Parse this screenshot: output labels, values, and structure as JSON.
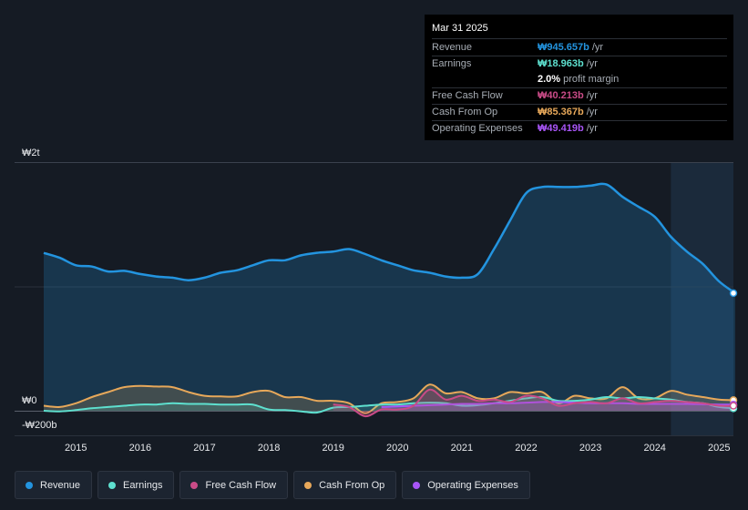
{
  "colors": {
    "background": "#151b24",
    "revenue": "#2394df",
    "earnings": "#5ee0cf",
    "free_cash_flow": "#c94b87",
    "cash_from_op": "#e7a85a",
    "operating_expenses": "#a855f7"
  },
  "tooltip": {
    "date": "Mar 31 2025",
    "rows": [
      {
        "label": "Revenue",
        "value": "₩945.657b",
        "unit": "/yr",
        "color": "#2394df"
      },
      {
        "label": "Earnings",
        "value": "₩18.963b",
        "unit": "/yr",
        "color": "#5ee0cf"
      },
      {
        "label": "",
        "value": "2.0%",
        "unit": "profit margin",
        "color": "#ffffff"
      },
      {
        "label": "Free Cash Flow",
        "value": "₩40.213b",
        "unit": "/yr",
        "color": "#c94b87"
      },
      {
        "label": "Cash From Op",
        "value": "₩85.367b",
        "unit": "/yr",
        "color": "#e7a85a"
      },
      {
        "label": "Operating Expenses",
        "value": "₩49.419b",
        "unit": "/yr",
        "color": "#a855f7"
      }
    ]
  },
  "legend": [
    {
      "label": "Revenue",
      "color": "#2394df"
    },
    {
      "label": "Earnings",
      "color": "#5ee0cf"
    },
    {
      "label": "Free Cash Flow",
      "color": "#c94b87"
    },
    {
      "label": "Cash From Op",
      "color": "#e7a85a"
    },
    {
      "label": "Operating Expenses",
      "color": "#a855f7"
    }
  ],
  "chart_data": {
    "type": "area",
    "title": "",
    "xlabel": "",
    "ylabel": "",
    "y_tick_labels": [
      "₩2t",
      "₩0",
      "-₩200b"
    ],
    "x_tick_labels": [
      "2015",
      "2016",
      "2017",
      "2018",
      "2019",
      "2020",
      "2021",
      "2022",
      "2023",
      "2024",
      "2025"
    ],
    "ylim_billions": [
      -200,
      2000
    ],
    "xlim_years": [
      2014.45,
      2025.25
    ],
    "forecast_start": 2024.25,
    "series": [
      {
        "name": "Revenue",
        "x": [
          2014.5,
          2014.75,
          2015.0,
          2015.25,
          2015.5,
          2015.75,
          2016.0,
          2016.25,
          2016.5,
          2016.75,
          2017.0,
          2017.25,
          2017.5,
          2017.75,
          2018.0,
          2018.25,
          2018.5,
          2018.75,
          2019.0,
          2019.25,
          2019.5,
          2019.75,
          2020.0,
          2020.25,
          2020.5,
          2020.75,
          2021.0,
          2021.25,
          2021.5,
          2021.75,
          2022.0,
          2022.25,
          2022.5,
          2022.75,
          2023.0,
          2023.25,
          2023.5,
          2023.75,
          2024.0,
          2024.25,
          2024.5,
          2024.75,
          2025.0,
          2025.25
        ],
        "values": [
          1270,
          1230,
          1170,
          1160,
          1120,
          1125,
          1100,
          1080,
          1070,
          1050,
          1070,
          1110,
          1130,
          1170,
          1210,
          1210,
          1250,
          1270,
          1280,
          1300,
          1260,
          1210,
          1170,
          1130,
          1110,
          1080,
          1070,
          1100,
          1300,
          1530,
          1750,
          1800,
          1800,
          1800,
          1810,
          1820,
          1720,
          1640,
          1560,
          1400,
          1280,
          1180,
          1040,
          946
        ]
      },
      {
        "name": "Earnings",
        "x": [
          2014.5,
          2014.75,
          2015.0,
          2015.25,
          2015.5,
          2015.75,
          2016.0,
          2016.25,
          2016.5,
          2016.75,
          2017.0,
          2017.25,
          2017.5,
          2017.75,
          2018.0,
          2018.25,
          2018.5,
          2018.75,
          2019.0,
          2019.25,
          2019.5,
          2019.75,
          2020.0,
          2020.25,
          2020.5,
          2020.75,
          2021.0,
          2021.25,
          2021.5,
          2021.75,
          2022.0,
          2022.25,
          2022.5,
          2022.75,
          2023.0,
          2023.25,
          2023.5,
          2023.75,
          2024.0,
          2024.25,
          2024.5,
          2024.75,
          2025.0,
          2025.25
        ],
        "values": [
          0,
          -5,
          5,
          20,
          30,
          40,
          50,
          50,
          60,
          55,
          55,
          50,
          50,
          50,
          10,
          5,
          -5,
          -15,
          25,
          30,
          40,
          50,
          50,
          60,
          65,
          60,
          40,
          45,
          60,
          80,
          100,
          110,
          80,
          80,
          90,
          110,
          100,
          110,
          100,
          90,
          70,
          60,
          30,
          19
        ]
      },
      {
        "name": "Free Cash Flow",
        "x": [
          2019.0,
          2019.25,
          2019.5,
          2019.75,
          2020.0,
          2020.25,
          2020.5,
          2020.75,
          2021.0,
          2021.25,
          2021.5,
          2021.75,
          2022.0,
          2022.25,
          2022.5,
          2022.75,
          2023.0,
          2023.25,
          2023.5,
          2023.75,
          2024.0,
          2024.25,
          2024.5,
          2024.75,
          2025.0,
          2025.25
        ],
        "values": [
          50,
          30,
          -45,
          10,
          10,
          40,
          170,
          90,
          120,
          80,
          90,
          70,
          120,
          100,
          40,
          60,
          70,
          60,
          100,
          60,
          70,
          80,
          70,
          60,
          40,
          40
        ]
      },
      {
        "name": "Cash From Op",
        "x": [
          2014.5,
          2014.75,
          2015.0,
          2015.25,
          2015.5,
          2015.75,
          2016.0,
          2016.25,
          2016.5,
          2016.75,
          2017.0,
          2017.25,
          2017.5,
          2017.75,
          2018.0,
          2018.25,
          2018.5,
          2018.75,
          2019.0,
          2019.25,
          2019.5,
          2019.75,
          2020.0,
          2020.25,
          2020.5,
          2020.75,
          2021.0,
          2021.25,
          2021.5,
          2021.75,
          2022.0,
          2022.25,
          2022.5,
          2022.75,
          2023.0,
          2023.25,
          2023.5,
          2023.75,
          2024.0,
          2024.25,
          2024.5,
          2024.75,
          2025.0,
          2025.25
        ],
        "values": [
          40,
          30,
          60,
          110,
          150,
          190,
          200,
          195,
          190,
          150,
          120,
          115,
          115,
          150,
          160,
          110,
          110,
          80,
          80,
          60,
          -20,
          60,
          70,
          100,
          210,
          140,
          150,
          100,
          100,
          150,
          140,
          150,
          60,
          120,
          100,
          100,
          190,
          100,
          100,
          160,
          130,
          110,
          90,
          85
        ]
      },
      {
        "name": "Operating Expenses",
        "x": [
          2019.75,
          2020.0,
          2020.25,
          2020.5,
          2020.75,
          2021.0,
          2021.25,
          2021.5,
          2021.75,
          2022.0,
          2022.25,
          2022.5,
          2022.75,
          2023.0,
          2023.25,
          2023.5,
          2023.75,
          2024.0,
          2024.25,
          2024.5,
          2024.75,
          2025.0,
          2025.25
        ],
        "values": [
          30,
          35,
          40,
          45,
          50,
          55,
          55,
          60,
          60,
          65,
          70,
          70,
          65,
          60,
          60,
          60,
          55,
          55,
          55,
          55,
          52,
          50,
          49
        ]
      }
    ]
  }
}
